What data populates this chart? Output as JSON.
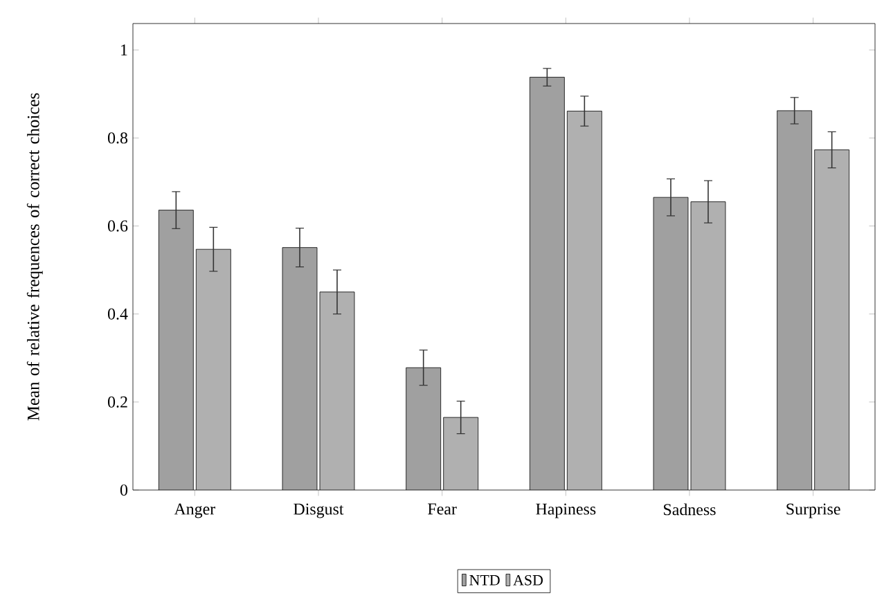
{
  "chart_data": {
    "type": "bar",
    "ylabel": "Mean of relative frequences of correct choices",
    "categories": [
      "Anger",
      "Disgust",
      "Fear",
      "Hapiness",
      "Sadness",
      "Surprise"
    ],
    "series": [
      {
        "name": "NTD",
        "color": "#a0a0a0",
        "values": [
          0.636,
          0.551,
          0.278,
          0.938,
          0.665,
          0.862
        ],
        "errors": [
          0.042,
          0.044,
          0.04,
          0.02,
          0.042,
          0.03
        ]
      },
      {
        "name": "ASD",
        "color": "#b0b0b0",
        "values": [
          0.547,
          0.45,
          0.165,
          0.861,
          0.655,
          0.773
        ],
        "errors": [
          0.05,
          0.05,
          0.037,
          0.034,
          0.048,
          0.041
        ]
      }
    ],
    "ylim": [
      0,
      1.06
    ],
    "yticks": [
      0,
      0.2,
      0.4,
      0.6,
      0.8,
      1
    ],
    "legend": "bottom",
    "grid": false
  }
}
